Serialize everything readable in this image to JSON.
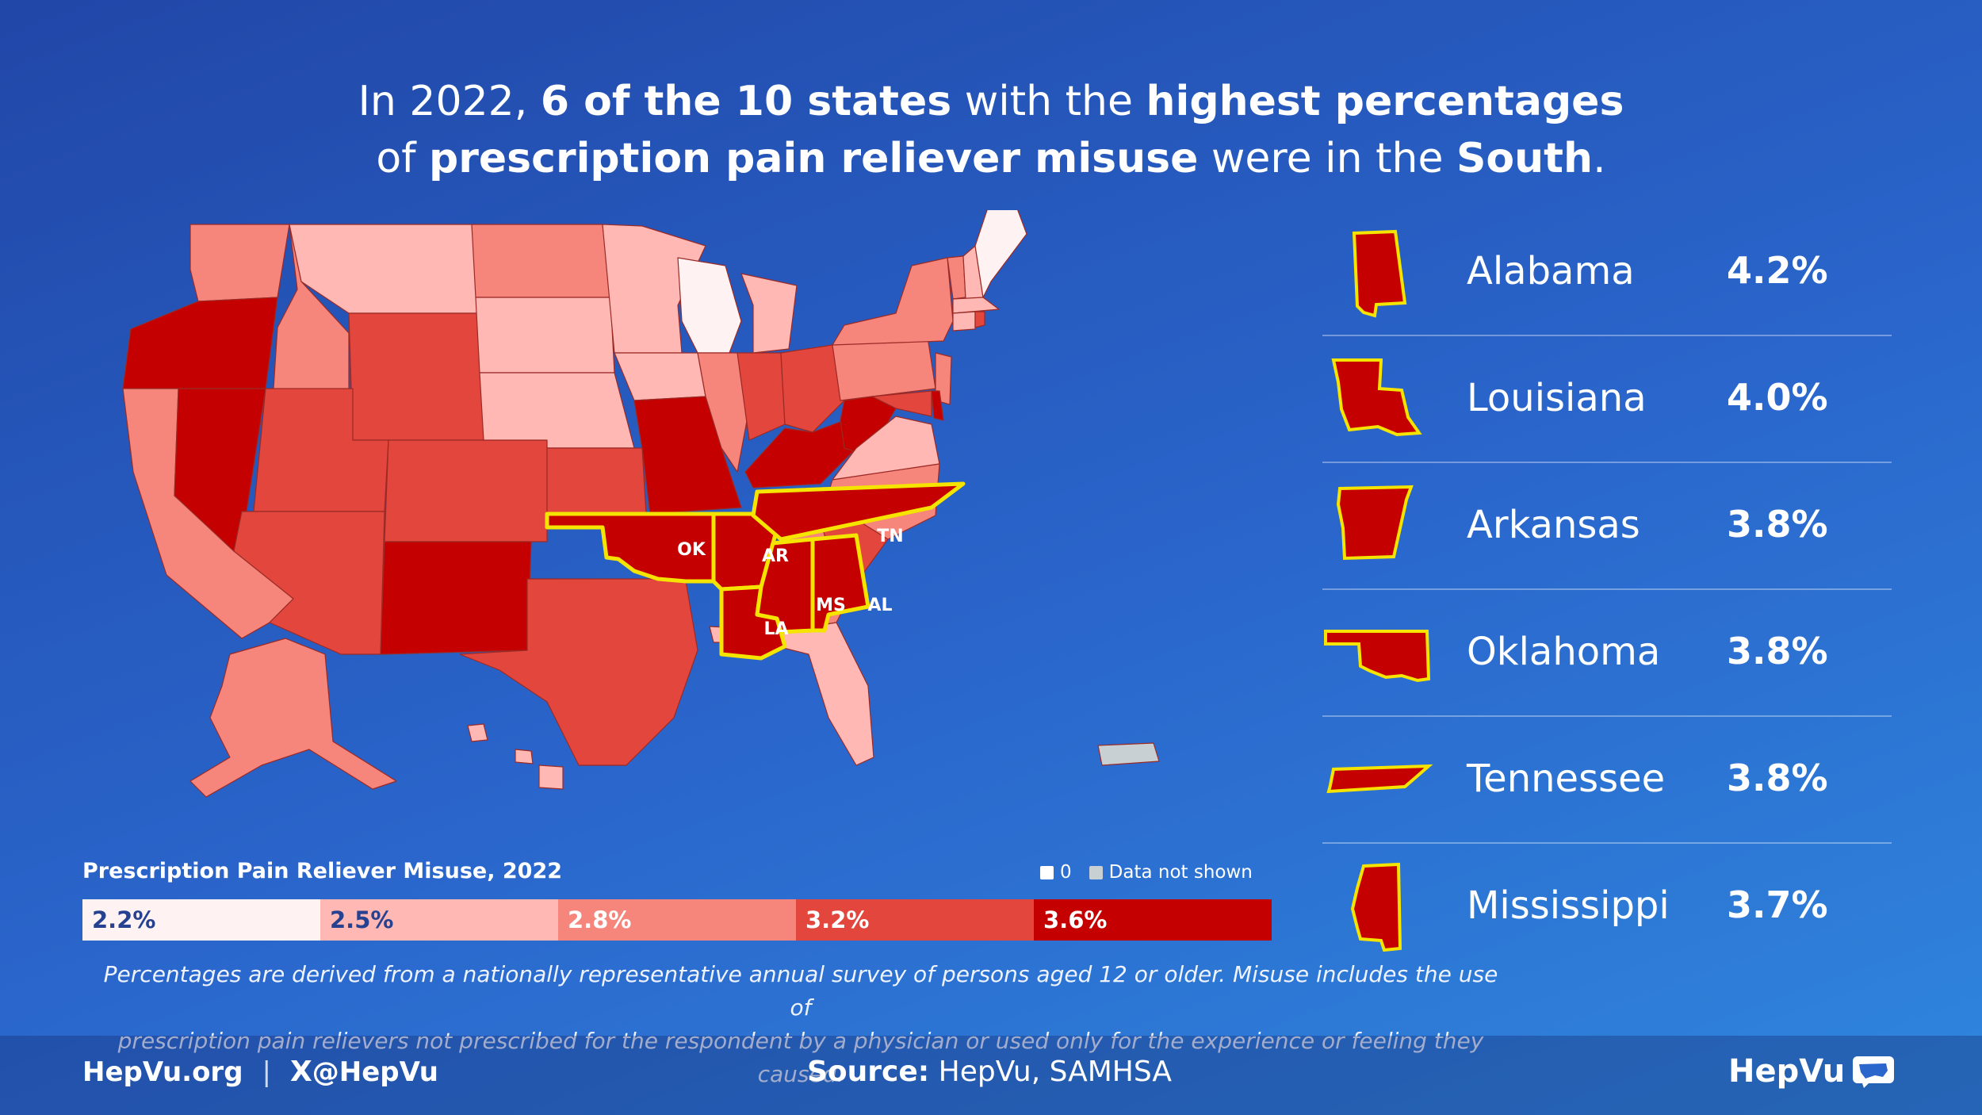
{
  "title": {
    "p1": "In 2022, ",
    "b1": "6 of the 10 states",
    "p2": " with the ",
    "b2": "highest percentages",
    "p3": "of ",
    "b3": "prescription pain reliever misuse",
    "p4": " were in the ",
    "b4": "South",
    "p5": "."
  },
  "map": {
    "labels": {
      "ok": "OK",
      "ar": "AR",
      "tn": "TN",
      "la": "LA",
      "ms": "MS",
      "al": "AL"
    },
    "colors": {
      "bin1": "#fff2f2",
      "bin2": "#ffb8b4",
      "bin3": "#f6857c",
      "bin4": "#e2463d",
      "bin5": "#c40000",
      "no_data": "#c8d0d4",
      "highlight_outline": "#f5e400"
    }
  },
  "legend": {
    "title": "Prescription Pain Reliever Misuse, 2022",
    "zero_label": "0",
    "no_data_label": "Data not shown",
    "bins": [
      {
        "label": "2.2%",
        "color": "#fff2f2",
        "text_color": "#26418f"
      },
      {
        "label": "2.5%",
        "color": "#ffb8b4",
        "text_color": "#26418f"
      },
      {
        "label": "2.8%",
        "color": "#f6857c",
        "text_color": "#ffffff"
      },
      {
        "label": "3.2%",
        "color": "#e2463d",
        "text_color": "#ffffff"
      },
      {
        "label": "3.6%",
        "color": "#c40000",
        "text_color": "#ffffff"
      }
    ]
  },
  "ranking": [
    {
      "state": "Alabama",
      "value": "4.2%",
      "icon": "alabama-shape-icon"
    },
    {
      "state": "Louisiana",
      "value": "4.0%",
      "icon": "louisiana-shape-icon"
    },
    {
      "state": "Arkansas",
      "value": "3.8%",
      "icon": "arkansas-shape-icon"
    },
    {
      "state": "Oklahoma",
      "value": "3.8%",
      "icon": "oklahoma-shape-icon"
    },
    {
      "state": "Tennessee",
      "value": "3.8%",
      "icon": "tennessee-shape-icon"
    },
    {
      "state": "Mississippi",
      "value": "3.7%",
      "icon": "mississippi-shape-icon"
    }
  ],
  "note": {
    "line1": "Percentages are derived from a nationally representative annual survey of persons aged 12 or older. Misuse includes the use of",
    "line2": "prescription pain relievers not prescribed for the respondent by a physician or used only for the experience or feeling they caused."
  },
  "footer": {
    "site": "HepVu.org",
    "divider": "|",
    "x_glyph": "X",
    "handle": "@HepVu",
    "source_label": "Source:",
    "source_text": " HepVu, SAMHSA",
    "brand": "HepVu"
  }
}
